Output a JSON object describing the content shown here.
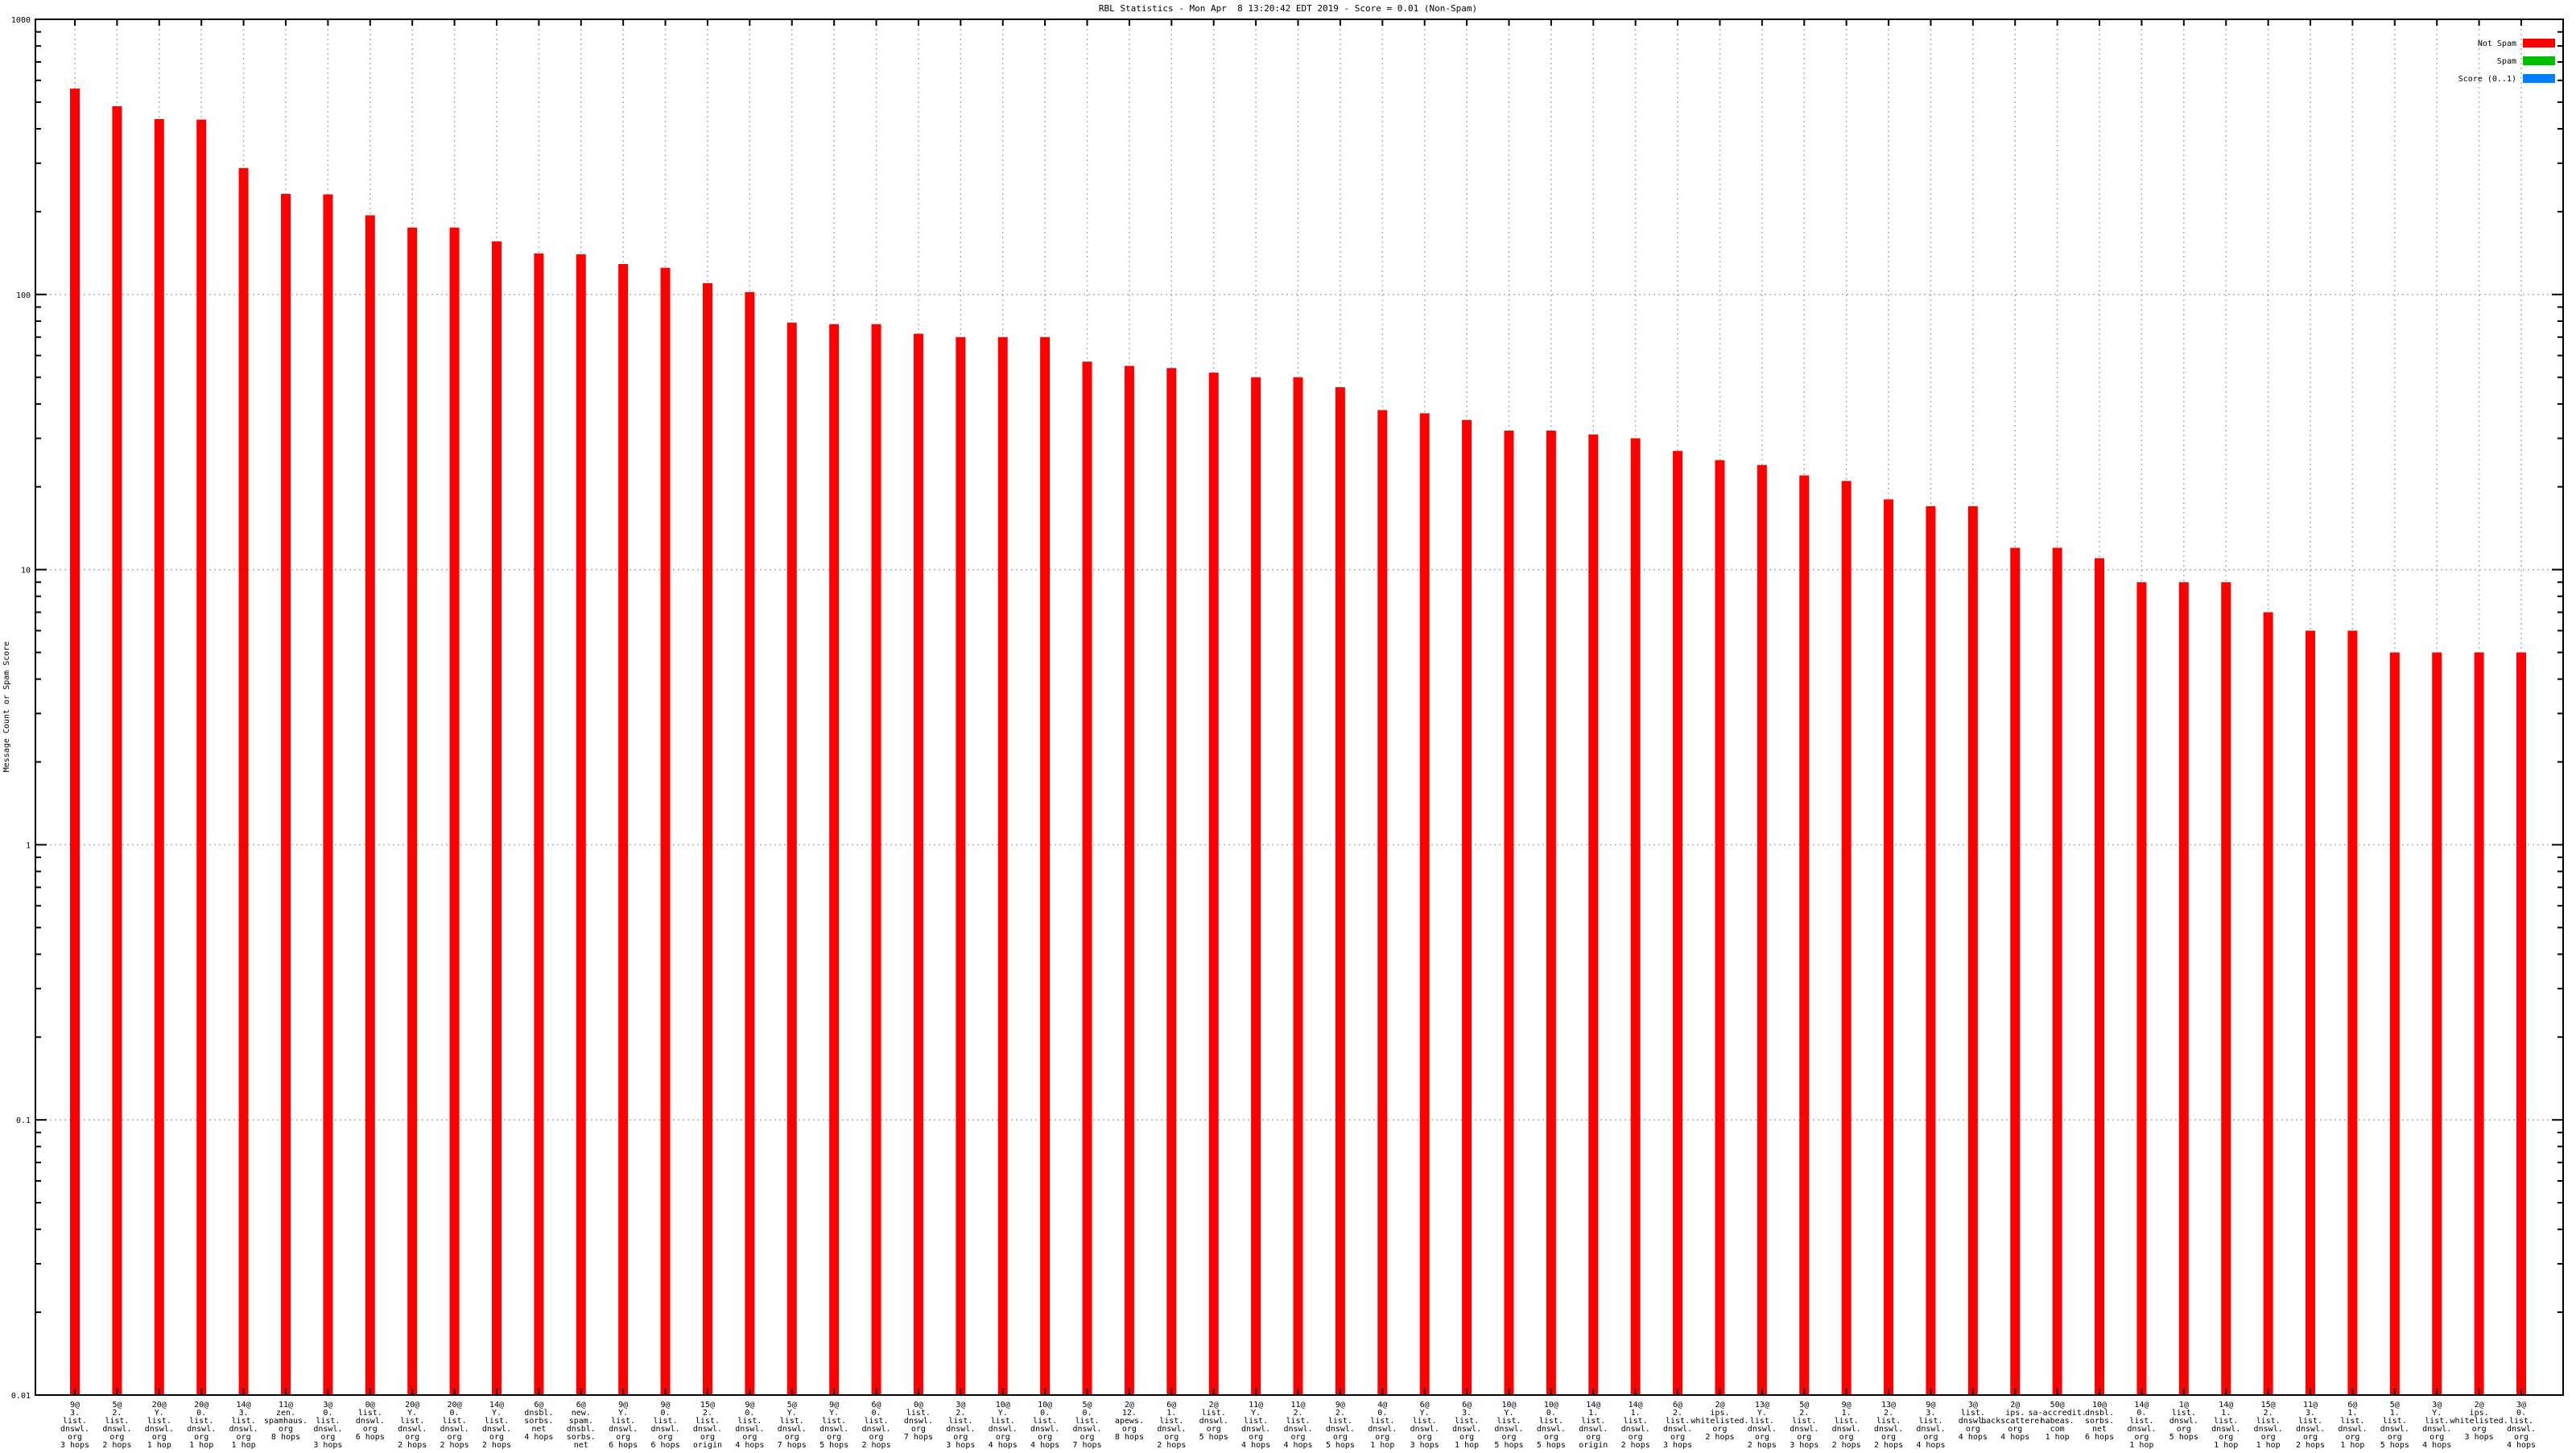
{
  "chart_data": {
    "type": "bar",
    "title": "RBL Statistics - Mon Apr  8 13:20:42 EDT 2019 - Score = 0.01 (Non-Spam)",
    "ylabel": "Message Count or Spam Score",
    "xlabel": "",
    "yscale": "log",
    "ylim": [
      0.01,
      1000
    ],
    "grid": true,
    "legend_position": "top-right-inside",
    "background": "#ffffff",
    "axis_color": "#000000",
    "grid_color": "#b0b0b0",
    "bar_color": "#ff0000",
    "yticks": [
      {
        "label": "1000",
        "value": 1000
      },
      {
        "label": "100",
        "value": 100
      },
      {
        "label": "10",
        "value": 10
      },
      {
        "label": "1",
        "value": 1
      },
      {
        "label": "0.1",
        "value": 0.1
      },
      {
        "label": "0.01",
        "value": 0.01
      }
    ],
    "legend": [
      {
        "label": "Not Spam",
        "color": "#ff0000"
      },
      {
        "label": "Spam",
        "color": "#00c000"
      },
      {
        "label": "Score (0..1)",
        "color": "#0080ff"
      }
    ],
    "categories": [
      [
        "9@",
        "3.",
        "list.",
        "dnswl.",
        "org",
        "3 hops"
      ],
      [
        "5@",
        "2.",
        "list.",
        "dnswl.",
        "org",
        "2 hops"
      ],
      [
        "20@",
        "Y.",
        "list.",
        "dnswl.",
        "org",
        "1 hop"
      ],
      [
        "20@",
        "0.",
        "list.",
        "dnswl.",
        "org",
        "1 hop"
      ],
      [
        "14@",
        "3.",
        "list.",
        "dnswl.",
        "org",
        "1 hop"
      ],
      [
        "11@",
        "zen.",
        "spamhaus.",
        "org",
        "8 hops"
      ],
      [
        "3@",
        "0.",
        "list.",
        "dnswl.",
        "org",
        "3 hops"
      ],
      [
        "0@",
        "list.",
        "dnswl.",
        "org",
        "6 hops"
      ],
      [
        "20@",
        "Y.",
        "list.",
        "dnswl.",
        "org",
        "2 hops"
      ],
      [
        "20@",
        "0.",
        "list.",
        "dnswl.",
        "org",
        "2 hops"
      ],
      [
        "14@",
        "Y.",
        "list.",
        "dnswl.",
        "org",
        "2 hops"
      ],
      [
        "6@",
        "dnsbl.",
        "sorbs.",
        "net",
        "4 hops"
      ],
      [
        "6@",
        "new.",
        "spam.",
        "dnsbl.",
        "sorbs.",
        "net",
        "4 hops"
      ],
      [
        "9@",
        "Y.",
        "list.",
        "dnswl.",
        "org",
        "6 hops"
      ],
      [
        "9@",
        "0.",
        "list.",
        "dnswl.",
        "org",
        "6 hops"
      ],
      [
        "15@",
        "2.",
        "list.",
        "dnswl.",
        "org",
        "origin"
      ],
      [
        "9@",
        "0.",
        "list.",
        "dnswl.",
        "org",
        "4 hops"
      ],
      [
        "5@",
        "Y.",
        "list.",
        "dnswl.",
        "org",
        "7 hops"
      ],
      [
        "9@",
        "Y.",
        "list.",
        "dnswl.",
        "org",
        "5 hops"
      ],
      [
        "6@",
        "0.",
        "list.",
        "dnswl.",
        "org",
        "2 hops"
      ],
      [
        "0@",
        "list.",
        "dnswl.",
        "org",
        "7 hops"
      ],
      [
        "3@",
        "2.",
        "list.",
        "dnswl.",
        "org",
        "3 hops"
      ],
      [
        "10@",
        "Y.",
        "list.",
        "dnswl.",
        "org",
        "4 hops"
      ],
      [
        "10@",
        "0.",
        "list.",
        "dnswl.",
        "org",
        "4 hops"
      ],
      [
        "5@",
        "0.",
        "list.",
        "dnswl.",
        "org",
        "7 hops"
      ],
      [
        "2@",
        "12.",
        "apews.",
        "org",
        "8 hops"
      ],
      [
        "6@",
        "1.",
        "list.",
        "dnswl.",
        "org",
        "2 hops"
      ],
      [
        "2@",
        "list.",
        "dnswl.",
        "org",
        "5 hops"
      ],
      [
        "11@",
        "Y.",
        "list.",
        "dnswl.",
        "org",
        "4 hops"
      ],
      [
        "11@",
        "2.",
        "list.",
        "dnswl.",
        "org",
        "4 hops"
      ],
      [
        "9@",
        "2.",
        "list.",
        "dnswl.",
        "org",
        "5 hops"
      ],
      [
        "4@",
        "0.",
        "list.",
        "dnswl.",
        "org",
        "1 hop"
      ],
      [
        "6@",
        "Y.",
        "list.",
        "dnswl.",
        "org",
        "3 hops"
      ],
      [
        "6@",
        "3.",
        "list.",
        "dnswl.",
        "org",
        "1 hop"
      ],
      [
        "10@",
        "Y.",
        "list.",
        "dnswl.",
        "org",
        "5 hops"
      ],
      [
        "10@",
        "0.",
        "list.",
        "dnswl.",
        "org",
        "5 hops"
      ],
      [
        "14@",
        "1.",
        "list.",
        "dnswl.",
        "org",
        "origin"
      ],
      [
        "14@",
        "1.",
        "list.",
        "dnswl.",
        "org",
        "2 hops"
      ],
      [
        "6@",
        "2.",
        "list.",
        "dnswl.",
        "org",
        "3 hops"
      ],
      [
        "2@",
        "ips.",
        "whitelisted.",
        "org",
        "2 hops"
      ],
      [
        "13@",
        "Y.",
        "list.",
        "dnswl.",
        "org",
        "2 hops"
      ],
      [
        "5@",
        "2.",
        "list.",
        "dnswl.",
        "org",
        "3 hops"
      ],
      [
        "9@",
        "1.",
        "list.",
        "dnswl.",
        "org",
        "2 hops"
      ],
      [
        "13@",
        "2.",
        "list.",
        "dnswl.",
        "org",
        "2 hops"
      ],
      [
        "9@",
        "3.",
        "list.",
        "dnswl.",
        "org",
        "4 hops"
      ],
      [
        "3@",
        "list.",
        "dnswl.",
        "org",
        "4 hops"
      ],
      [
        "2@",
        "ips.",
        "backscatterer.",
        "org",
        "4 hops"
      ],
      [
        "50@",
        "sa-accredit.",
        "habeas.",
        "com",
        "1 hop"
      ],
      [
        "10@",
        "dnsbl.",
        "sorbs.",
        "net",
        "6 hops"
      ],
      [
        "14@",
        "0.",
        "list.",
        "dnswl.",
        "org",
        "1 hop"
      ],
      [
        "1@",
        "list.",
        "dnswl.",
        "org",
        "5 hops"
      ],
      [
        "14@",
        "1.",
        "list.",
        "dnswl.",
        "org",
        "1 hop"
      ],
      [
        "15@",
        "2.",
        "list.",
        "dnswl.",
        "org",
        "1 hop"
      ],
      [
        "11@",
        "3.",
        "list.",
        "dnswl.",
        "org",
        "2 hops"
      ],
      [
        "6@",
        "1.",
        "list.",
        "dnswl.",
        "org",
        "1 hop"
      ],
      [
        "5@",
        "1.",
        "list.",
        "dnswl.",
        "org",
        "5 hops"
      ],
      [
        "3@",
        "Y.",
        "list.",
        "dnswl.",
        "org",
        "4 hops"
      ],
      [
        "2@",
        "ips.",
        "whitelisted.",
        "org",
        "3 hops"
      ],
      [
        "3@",
        "0.",
        "list.",
        "dnswl.",
        "org",
        "4 hops"
      ]
    ],
    "values": [
      560,
      483,
      434,
      432,
      288,
      232,
      231,
      194,
      175,
      175,
      156,
      141,
      140,
      129,
      125,
      110,
      102,
      79,
      78,
      78,
      72,
      70,
      70,
      70,
      57,
      55,
      54,
      52,
      50,
      50,
      46,
      38,
      37,
      35,
      32,
      32,
      31,
      30,
      27,
      25,
      24,
      22,
      21,
      18,
      17,
      17,
      12,
      12,
      11,
      9,
      9,
      9,
      7,
      6,
      6,
      5,
      5,
      5,
      5
    ]
  }
}
